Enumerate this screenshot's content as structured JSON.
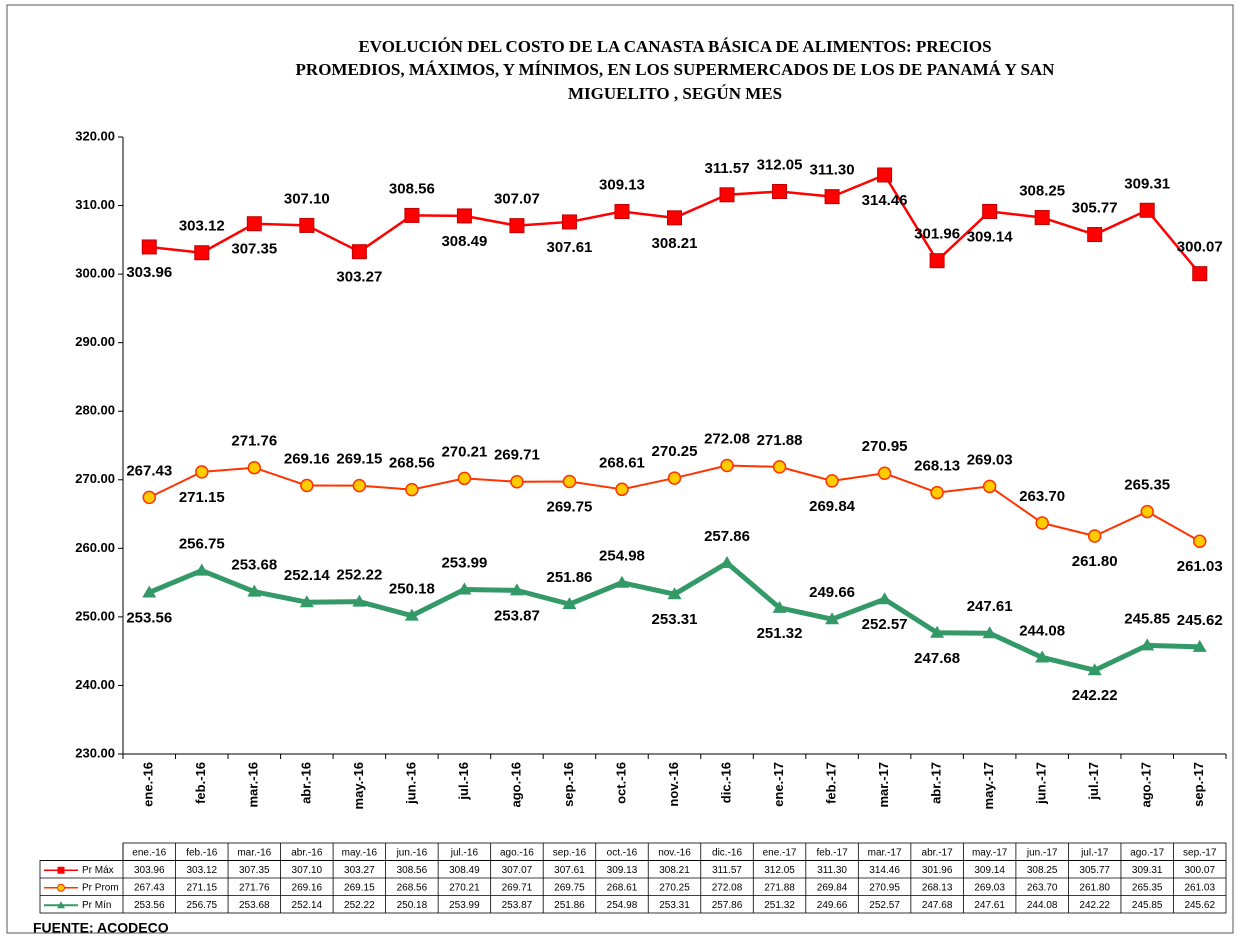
{
  "chart_data": {
    "type": "line",
    "title": [
      "EVOLUCIÓN DEL COSTO DE LA CANASTA BÁSICA DE ALIMENTOS: PRECIOS",
      "PROMEDIOS, MÁXIMOS,  Y MÍNIMOS, EN LOS SUPERMERCADOS DE LOS DE PANAMÁ Y SAN",
      "MIGUELITO ,  SEGÚN MES"
    ],
    "categories": [
      "ene.-16",
      "feb.-16",
      "mar.-16",
      "abr.-16",
      "may.-16",
      "jun.-16",
      "jul.-16",
      "ago.-16",
      "sep.-16",
      "oct.-16",
      "nov.-16",
      "dic.-16",
      "ene.-17",
      "feb.-17",
      "mar.-17",
      "abr.-17",
      "may.-17",
      "jun.-17",
      "jul.-17",
      "ago.-17",
      "sep.-17"
    ],
    "series": [
      {
        "name": "Pr Máx",
        "color": "#ff0000",
        "marker": "square",
        "values": [
          303.96,
          303.12,
          307.35,
          307.1,
          303.27,
          308.56,
          308.49,
          307.07,
          307.61,
          309.13,
          308.21,
          311.57,
          312.05,
          311.3,
          314.46,
          301.96,
          309.14,
          308.25,
          305.77,
          309.31,
          300.07
        ],
        "value_labels": [
          "303.96",
          "303.12",
          "307.35",
          "307.10",
          "303.27",
          "308.56",
          "308.49",
          "307.07",
          "307.61",
          "309.13",
          "308.21",
          "311.57",
          "312.05",
          "311.30",
          "314.46",
          "301.96",
          "309.14",
          "308.25",
          "305.77",
          "309.31",
          "300.07"
        ]
      },
      {
        "name": "Pr Prom",
        "color": "#ff3300",
        "marker": "circle",
        "values": [
          267.43,
          271.15,
          271.76,
          269.16,
          269.15,
          268.56,
          270.21,
          269.71,
          269.75,
          268.61,
          270.25,
          272.08,
          271.88,
          269.84,
          270.95,
          268.13,
          269.03,
          263.7,
          261.8,
          265.35,
          261.03
        ],
        "value_labels": [
          "267.43",
          "271.15",
          "271.76",
          "269.16",
          "269.15",
          "268.56",
          "270.21",
          "269.71",
          "269.75",
          "268.61",
          "270.25",
          "272.08",
          "271.88",
          "269.84",
          "270.95",
          "268.13",
          "269.03",
          "263.70",
          "261.80",
          "265.35",
          "261.03"
        ]
      },
      {
        "name": "Pr Mín",
        "color": "#339966",
        "marker": "triangle",
        "values": [
          253.56,
          256.75,
          253.68,
          252.14,
          252.22,
          250.18,
          253.99,
          253.87,
          251.86,
          254.98,
          253.31,
          257.86,
          251.32,
          249.66,
          252.57,
          247.68,
          247.61,
          244.08,
          242.22,
          245.85,
          245.62
        ],
        "value_labels": [
          "253.56",
          "256.75",
          "253.68",
          "252.14",
          "252.22",
          "250.18",
          "253.99",
          "253.87",
          "251.86",
          "254.98",
          "253.31",
          "257.86",
          "251.32",
          "249.66",
          "252.57",
          "247.68",
          "247.61",
          "244.08",
          "242.22",
          "245.85",
          "245.62"
        ]
      }
    ],
    "ylim": [
      230,
      320
    ],
    "yticks": [
      {
        "value": 230,
        "label": "230.00"
      },
      {
        "value": 240,
        "label": "240.00"
      },
      {
        "value": 250,
        "label": "250.00"
      },
      {
        "value": 260,
        "label": "260.00"
      },
      {
        "value": 270,
        "label": "270.00"
      },
      {
        "value": 280,
        "label": "280.00"
      },
      {
        "value": 290,
        "label": "290.00"
      },
      {
        "value": 300,
        "label": "300.00"
      },
      {
        "value": 310,
        "label": "310.00"
      },
      {
        "value": 320,
        "label": "320.00"
      }
    ],
    "grid": false,
    "source": "FUENTE: ACODECO"
  }
}
